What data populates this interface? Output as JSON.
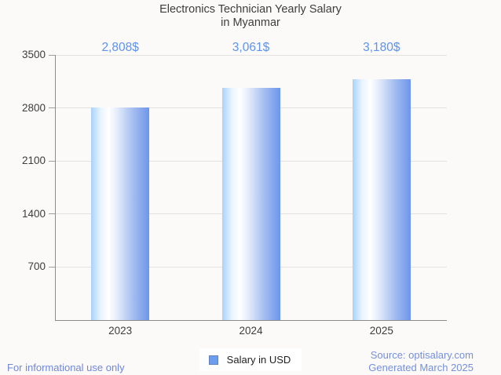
{
  "title": {
    "line1": "Electronics Technician Yearly Salary",
    "line2": "in Myanmar"
  },
  "legend": {
    "label": "Salary in USD",
    "marker_color": "#6D9EEB"
  },
  "footer": {
    "left": "For informational use only",
    "source": "Source: optisalary.com",
    "generated": "Generated March 2025"
  },
  "colors": {
    "background": "#FBFAF8",
    "value_label": "#5E93EE",
    "footer_text": "#7590DD",
    "bar_gradient_light": "#A8D2FB",
    "bar_gradient_mid": "#FFFFFF",
    "bar_gradient_dark": "#6D95EB",
    "axis_line": "#8C8C8C",
    "gridline": "#E4E2DF",
    "text_dark": "#3D3D3D"
  },
  "chart_data": {
    "type": "bar",
    "title": "Electronics Technician Yearly Salary in Myanmar",
    "categories": [
      "2023",
      "2024",
      "2025"
    ],
    "series": [
      {
        "name": "Salary in USD",
        "values": [
          2808,
          3061,
          3180
        ]
      }
    ],
    "value_labels": [
      "2,808$",
      "3,061$",
      "3,180$"
    ],
    "xlabel": "",
    "ylabel": "",
    "ylim": [
      0,
      3500
    ],
    "yticks": [
      700,
      1400,
      2100,
      2800,
      3500
    ],
    "grid": true,
    "legend_position": "bottom"
  }
}
